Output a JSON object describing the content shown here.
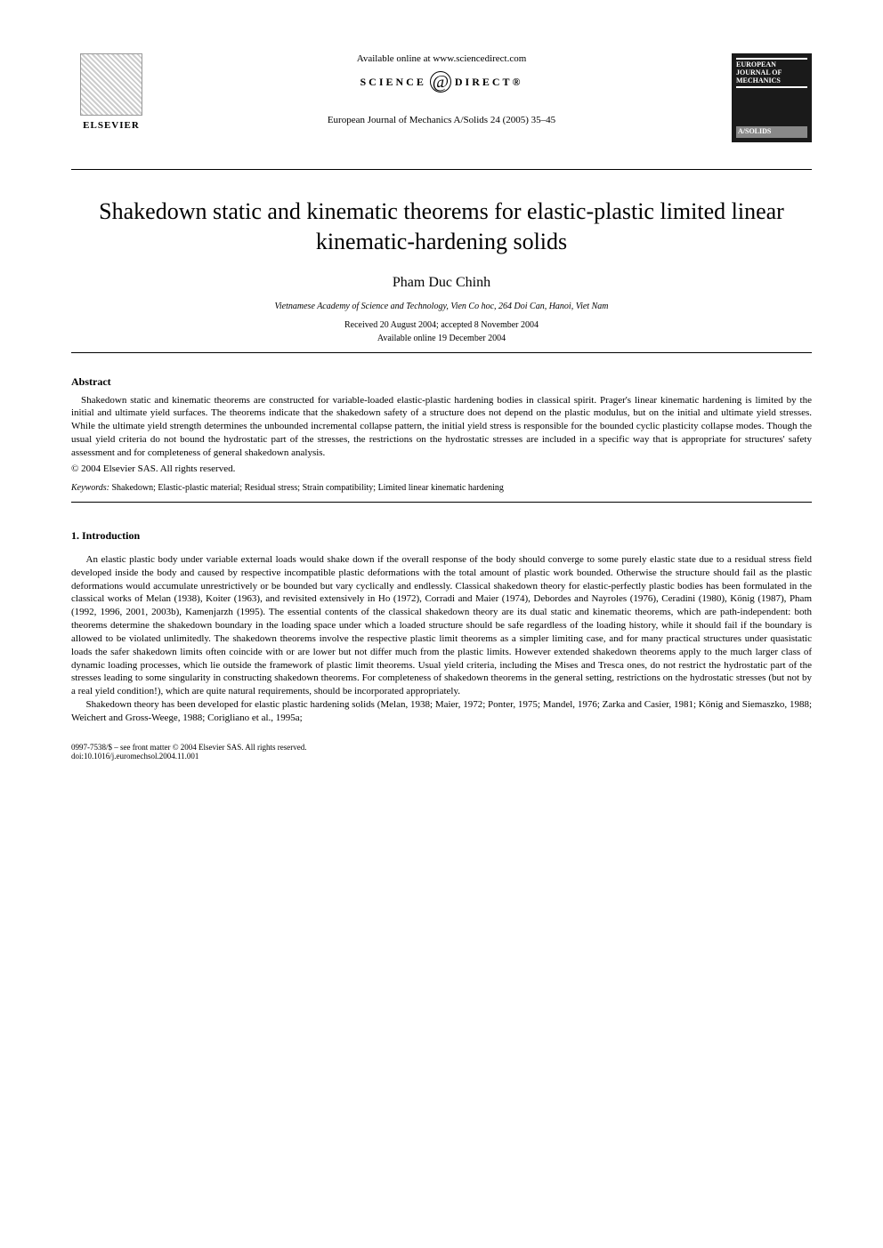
{
  "header": {
    "elsevier_label": "ELSEVIER",
    "available_online": "Available online at www.sciencedirect.com",
    "science_text_left": "SCIENCE",
    "science_text_right": "DIRECT®",
    "journal_citation": "European Journal of Mechanics A/Solids 24 (2005) 35–45",
    "journal_logo_line1": "EUROPEAN",
    "journal_logo_line2": "JOURNAL OF",
    "journal_logo_line3": "MECHANICS",
    "journal_logo_line4": "A/SOLIDS"
  },
  "article": {
    "title": "Shakedown static and kinematic theorems for elastic-plastic limited linear kinematic-hardening solids",
    "author": "Pham Duc Chinh",
    "affiliation": "Vietnamese Academy of Science and Technology, Vien Co hoc, 264 Doi Can, Hanoi, Viet Nam",
    "received": "Received 20 August 2004; accepted 8 November 2004",
    "available": "Available online 19 December 2004"
  },
  "abstract": {
    "heading": "Abstract",
    "text": "Shakedown static and kinematic theorems are constructed for variable-loaded elastic-plastic hardening bodies in classical spirit. Prager's linear kinematic hardening is limited by the initial and ultimate yield surfaces. The theorems indicate that the shakedown safety of a structure does not depend on the plastic modulus, but on the initial and ultimate yield stresses. While the ultimate yield strength determines the unbounded incremental collapse pattern, the initial yield stress is responsible for the bounded cyclic plasticity collapse modes. Though the usual yield criteria do not bound the hydrostatic part of the stresses, the restrictions on the hydrostatic stresses are included in a specific way that is appropriate for structures' safety assessment and for completeness of general shakedown analysis.",
    "copyright": "© 2004 Elsevier SAS. All rights reserved.",
    "keywords_label": "Keywords:",
    "keywords_text": "Shakedown; Elastic-plastic material; Residual stress; Strain compatibility; Limited linear kinematic hardening"
  },
  "introduction": {
    "heading": "1. Introduction",
    "para1": "An elastic plastic body under variable external loads would shake down if the overall response of the body should converge to some purely elastic state due to a residual stress field developed inside the body and caused by respective incompatible plastic deformations with the total amount of plastic work bounded. Otherwise the structure should fail as the plastic deformations would accumulate unrestrictively or be bounded but vary cyclically and endlessly. Classical shakedown theory for elastic-perfectly plastic bodies has been formulated in the classical works of Melan (1938), Koiter (1963), and revisited extensively in Ho (1972), Corradi and Maier (1974), Debordes and Nayroles (1976), Ceradini (1980), König (1987), Pham (1992, 1996, 2001, 2003b), Kamenjarzh (1995). The essential contents of the classical shakedown theory are its dual static and kinematic theorems, which are path-independent: both theorems determine the shakedown boundary in the loading space under which a loaded structure should be safe regardless of the loading history, while it should fail if the boundary is allowed to be violated unlimitedly. The shakedown theorems involve the respective plastic limit theorems as a simpler limiting case, and for many practical structures under quasistatic loads the safer shakedown limits often coincide with or are lower but not differ much from the plastic limits. However extended shakedown theorems apply to the much larger class of dynamic loading processes, which lie outside the framework of plastic limit theorems. Usual yield criteria, including the Mises and Tresca ones, do not restrict the hydrostatic part of the stresses leading to some singularity in constructing shakedown theorems. For completeness of shakedown theorems in the general setting, restrictions on the hydrostatic stresses (but not by a real yield condition!), which are quite natural requirements, should be incorporated appropriately.",
    "para2": "Shakedown theory has been developed for elastic plastic hardening solids (Melan, 1938; Maier, 1972; Ponter, 1975; Mandel, 1976; Zarka and Casier, 1981; König and Siemaszko, 1988; Weichert and Gross-Weege, 1988; Corigliano et al., 1995a;"
  },
  "footer": {
    "issn": "0997-7538/$ – see front matter © 2004 Elsevier SAS. All rights reserved.",
    "doi": "doi:10.1016/j.euromechsol.2004.11.001"
  },
  "styling": {
    "body_width": 992,
    "body_height": 1403,
    "title_fontsize": 26,
    "author_fontsize": 16,
    "body_fontsize": 11,
    "small_fontsize": 10,
    "footer_fontsize": 9,
    "text_color": "#000000",
    "background_color": "#ffffff"
  }
}
